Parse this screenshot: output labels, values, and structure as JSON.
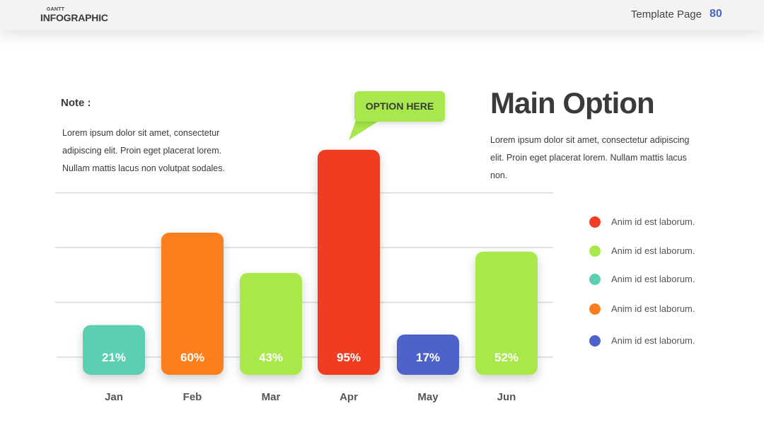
{
  "header": {
    "brand_small": "GANTT",
    "brand_big": "INFOGRAPHIC",
    "page_label": "Template Page",
    "page_number": "80"
  },
  "note": {
    "title": "Note :",
    "text": "Lorem ipsum dolor sit amet, consectetur adipiscing elit. Proin eget placerat lorem. Nullam mattis lacus non volutpat sodales."
  },
  "main": {
    "title": "Main Option",
    "text": "Lorem ipsum dolor sit amet, consectetur adipiscing elit. Proin eget placerat lorem. Nullam mattis lacus non."
  },
  "callout": {
    "text": "OPTION HERE",
    "color": "#a8e84c"
  },
  "legend": {
    "items": [
      {
        "label": "Anim id est laborum.",
        "color": "#f03e24"
      },
      {
        "label": "Anim id est laborum.",
        "color": "#a8e84c"
      },
      {
        "label": "Anim id est laborum.",
        "color": "#5ccfb3"
      },
      {
        "label": "Anim id est laborum.",
        "color": "#fd7e1f"
      },
      {
        "label": "Anim id est laborum.",
        "color": "#4e63c9"
      }
    ]
  },
  "chart_data": {
    "type": "bar",
    "categories": [
      "Jan",
      "Feb",
      "Mar",
      "Apr",
      "May",
      "Jun"
    ],
    "values": [
      21,
      60,
      43,
      95,
      17,
      52
    ],
    "data_labels": [
      "21%",
      "60%",
      "43%",
      "95%",
      "17%",
      "52%"
    ],
    "colors": [
      "#5ccfb3",
      "#fd7e1f",
      "#a8e84c",
      "#f03e24",
      "#4e63c9",
      "#a8e84c"
    ],
    "title": "",
    "xlabel": "",
    "ylabel": "",
    "ylim": [
      0,
      100
    ],
    "grid": true,
    "legend": "right"
  }
}
